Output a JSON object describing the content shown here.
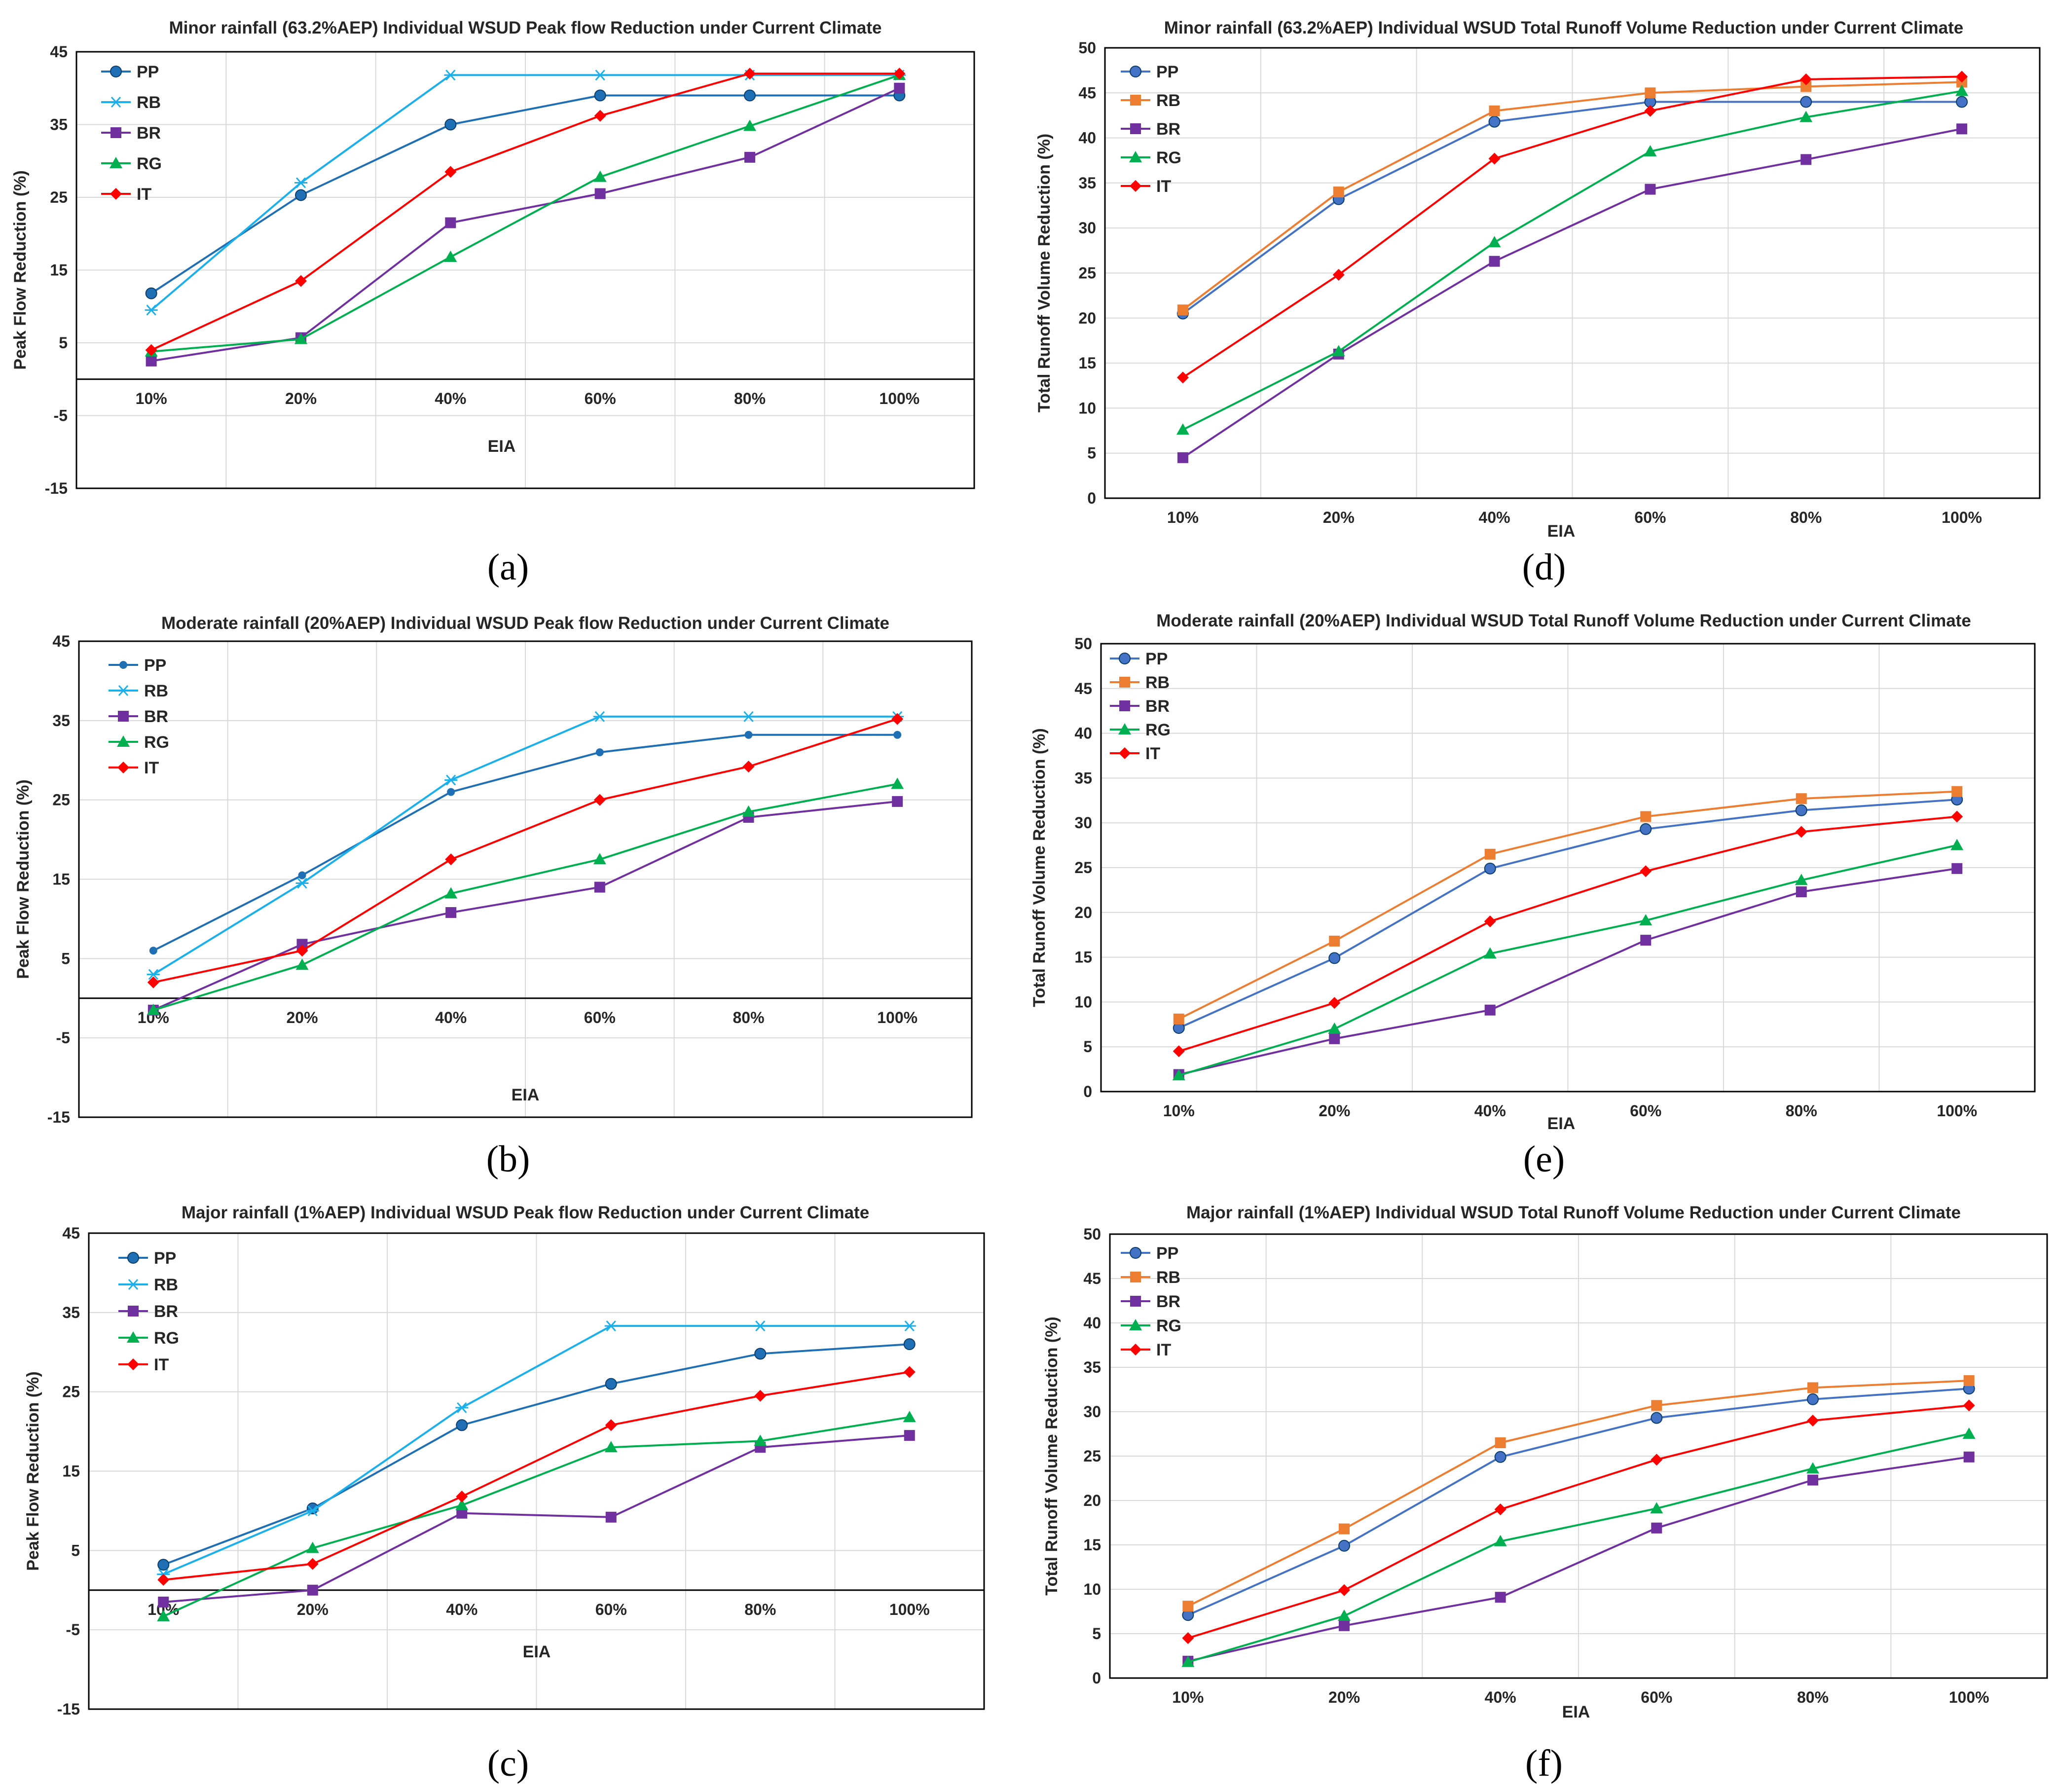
{
  "colors": {
    "PP": "#1f6fb5",
    "RB": "#1ab0ec",
    "BR": "#7030a0",
    "RG": "#00b050",
    "IT": "#ff0000",
    "PP_volume": "#4472c4",
    "RB_volume": "#ed7d31"
  },
  "chart_data": [
    {
      "id": "a",
      "panel_label": "(a)",
      "type": "line",
      "title": "Minor rainfall (63.2%AEP)  Individual WSUD Peak flow Reduction under Current Climate",
      "xlabel": "EIA",
      "ylabel": "Peak Flow Reduction (%)",
      "categories": [
        "10%",
        "20%",
        "40%",
        "60%",
        "80%",
        "100%"
      ],
      "ylim": [
        -15,
        45
      ],
      "yticks": [
        "-15",
        "-5",
        "5",
        "15",
        "25",
        "35",
        "45"
      ],
      "grid": true,
      "legend_position": "top-left",
      "series": [
        {
          "name": "PP",
          "marker": "circle",
          "color": "#1f6fb5",
          "values": [
            11.8,
            25.3,
            35.0,
            39.0,
            39.0,
            39.0
          ]
        },
        {
          "name": "RB",
          "marker": "star",
          "color": "#1ab0ec",
          "values": [
            9.5,
            27.0,
            41.8,
            41.8,
            41.8,
            41.8
          ]
        },
        {
          "name": "BR",
          "marker": "square",
          "color": "#7030a0",
          "values": [
            2.5,
            5.7,
            21.5,
            25.5,
            30.5,
            40.0
          ]
        },
        {
          "name": "RG",
          "marker": "triangle",
          "color": "#00b050",
          "values": [
            3.8,
            5.5,
            16.8,
            27.8,
            34.8,
            41.8
          ]
        },
        {
          "name": "IT",
          "marker": "diamond",
          "color": "#ff0000",
          "values": [
            4.0,
            13.5,
            28.5,
            36.2,
            42.0,
            42.0
          ]
        }
      ]
    },
    {
      "id": "b",
      "panel_label": "(b)",
      "type": "line",
      "title": "Moderate rainfall (20%AEP)  Individual WSUD Peak flow Reduction under Current Climate",
      "xlabel": "EIA",
      "ylabel": "Peak Flow Reduction (%)",
      "categories": [
        "10%",
        "20%",
        "40%",
        "60%",
        "80%",
        "100%"
      ],
      "ylim": [
        -15,
        45
      ],
      "yticks": [
        "-15",
        "-5",
        "5",
        "15",
        "25",
        "35",
        "45"
      ],
      "grid": true,
      "legend_position": "top-left",
      "series": [
        {
          "name": "PP",
          "marker": "circle-small",
          "color": "#1f6fb5",
          "values": [
            6.0,
            15.5,
            26.0,
            31.0,
            33.2,
            33.2
          ]
        },
        {
          "name": "RB",
          "marker": "star",
          "color": "#1ab0ec",
          "values": [
            3.0,
            14.5,
            27.5,
            35.5,
            35.5,
            35.5
          ]
        },
        {
          "name": "BR",
          "marker": "square",
          "color": "#7030a0",
          "values": [
            -1.5,
            6.8,
            10.8,
            14.0,
            22.8,
            24.8
          ]
        },
        {
          "name": "RG",
          "marker": "triangle",
          "color": "#00b050",
          "values": [
            -1.5,
            4.2,
            13.2,
            17.5,
            23.5,
            27.0
          ]
        },
        {
          "name": "IT",
          "marker": "diamond",
          "color": "#ff0000",
          "values": [
            2.0,
            6.0,
            17.5,
            25.0,
            29.2,
            35.2
          ]
        }
      ]
    },
    {
      "id": "c",
      "panel_label": "(c)",
      "type": "line",
      "title": "Major rainfall (1%AEP)  Individual WSUD Peak flow Reduction under Current Climate",
      "xlabel": "EIA",
      "ylabel": "Peak Flow Reduction (%)",
      "categories": [
        "10%",
        "20%",
        "40%",
        "60%",
        "80%",
        "100%"
      ],
      "ylim": [
        -15,
        45
      ],
      "yticks": [
        "-15",
        "-5",
        "5",
        "15",
        "25",
        "35",
        "45"
      ],
      "grid": true,
      "legend_position": "top-left",
      "series": [
        {
          "name": "PP",
          "marker": "circle",
          "color": "#1f6fb5",
          "values": [
            3.2,
            10.3,
            20.8,
            26.0,
            29.8,
            31.0
          ]
        },
        {
          "name": "RB",
          "marker": "star",
          "color": "#1ab0ec",
          "values": [
            2.0,
            10.0,
            23.0,
            33.3,
            33.3,
            33.3
          ]
        },
        {
          "name": "BR",
          "marker": "square",
          "color": "#7030a0",
          "values": [
            -1.5,
            0.0,
            9.7,
            9.2,
            18.0,
            19.5
          ]
        },
        {
          "name": "RG",
          "marker": "triangle",
          "color": "#00b050",
          "values": [
            -3.3,
            5.3,
            10.7,
            18.0,
            18.8,
            21.8
          ]
        },
        {
          "name": "IT",
          "marker": "diamond",
          "color": "#ff0000",
          "values": [
            1.3,
            3.3,
            11.8,
            20.8,
            24.5,
            27.5
          ]
        }
      ]
    },
    {
      "id": "d",
      "panel_label": "(d)",
      "type": "line",
      "title": "Minor rainfall (63.2%AEP)  Individual WSUD Total Runoff Volume Reduction under Current Climate",
      "xlabel": "EIA",
      "ylabel": "Total Runoff Volume Reduction (%)",
      "categories": [
        "10%",
        "20%",
        "40%",
        "60%",
        "80%",
        "100%"
      ],
      "ylim": [
        0,
        50
      ],
      "yticks": [
        "0",
        "5",
        "10",
        "15",
        "20",
        "25",
        "30",
        "35",
        "40",
        "45",
        "50"
      ],
      "grid": true,
      "legend_position": "top-left",
      "series": [
        {
          "name": "PP",
          "marker": "circle",
          "color": "#4472c4",
          "values": [
            20.5,
            33.2,
            41.8,
            44.0,
            44.0,
            44.0
          ]
        },
        {
          "name": "RB",
          "marker": "square",
          "color": "#ed7d31",
          "values": [
            20.9,
            34.0,
            43.0,
            45.0,
            45.7,
            46.2
          ]
        },
        {
          "name": "BR",
          "marker": "square",
          "color": "#7030a0",
          "values": [
            4.5,
            16.0,
            26.3,
            34.3,
            37.6,
            41.0
          ]
        },
        {
          "name": "RG",
          "marker": "triangle",
          "color": "#00b050",
          "values": [
            7.6,
            16.3,
            28.4,
            38.5,
            42.3,
            45.2
          ]
        },
        {
          "name": "IT",
          "marker": "diamond",
          "color": "#ff0000",
          "values": [
            13.4,
            24.8,
            37.7,
            43.0,
            46.5,
            46.8
          ]
        }
      ]
    },
    {
      "id": "e",
      "panel_label": "(e)",
      "type": "line",
      "title": "Moderate rainfall (20%AEP)  Individual WSUD Total Runoff Volume Reduction under Current Climate",
      "xlabel": "EIA",
      "ylabel": "Total Runoff Volume Reduction (%)",
      "categories": [
        "10%",
        "20%",
        "40%",
        "60%",
        "80%",
        "100%"
      ],
      "ylim": [
        0,
        50
      ],
      "yticks": [
        "0",
        "5",
        "10",
        "15",
        "20",
        "25",
        "30",
        "35",
        "40",
        "45",
        "50"
      ],
      "grid": true,
      "legend_position": "top-left",
      "series": [
        {
          "name": "PP",
          "marker": "circle",
          "color": "#4472c4",
          "values": [
            7.1,
            14.9,
            24.9,
            29.3,
            31.4,
            32.6
          ]
        },
        {
          "name": "RB",
          "marker": "square",
          "color": "#ed7d31",
          "values": [
            8.1,
            16.8,
            26.5,
            30.7,
            32.7,
            33.5
          ]
        },
        {
          "name": "BR",
          "marker": "square",
          "color": "#7030a0",
          "values": [
            1.9,
            5.9,
            9.1,
            16.9,
            22.3,
            24.9
          ]
        },
        {
          "name": "RG",
          "marker": "triangle",
          "color": "#00b050",
          "values": [
            1.8,
            7.0,
            15.4,
            19.1,
            23.6,
            27.5
          ]
        },
        {
          "name": "IT",
          "marker": "diamond",
          "color": "#ff0000",
          "values": [
            4.5,
            9.9,
            19.0,
            24.6,
            29.0,
            30.7
          ]
        }
      ]
    },
    {
      "id": "f",
      "panel_label": "(f)",
      "type": "line",
      "title": "Major rainfall (1%AEP)  Individual WSUD Total Runoff Volume Reduction under Current Climate",
      "xlabel": "EIA",
      "ylabel": "Total Runoff Volume Reduction (%)",
      "categories": [
        "10%",
        "20%",
        "40%",
        "60%",
        "80%",
        "100%"
      ],
      "ylim": [
        0,
        50
      ],
      "yticks": [
        "0",
        "5",
        "10",
        "15",
        "20",
        "25",
        "30",
        "35",
        "40",
        "45",
        "50"
      ],
      "grid": true,
      "legend_position": "top-left",
      "series": [
        {
          "name": "PP",
          "marker": "circle",
          "color": "#4472c4",
          "values": [
            7.1,
            14.9,
            24.9,
            29.3,
            31.4,
            32.6
          ]
        },
        {
          "name": "RB",
          "marker": "square",
          "color": "#ed7d31",
          "values": [
            8.1,
            16.8,
            26.5,
            30.7,
            32.7,
            33.5
          ]
        },
        {
          "name": "BR",
          "marker": "square",
          "color": "#7030a0",
          "values": [
            1.9,
            5.9,
            9.1,
            16.9,
            22.3,
            24.9
          ]
        },
        {
          "name": "RG",
          "marker": "triangle",
          "color": "#00b050",
          "values": [
            1.8,
            7.0,
            15.4,
            19.1,
            23.6,
            27.5
          ]
        },
        {
          "name": "IT",
          "marker": "diamond",
          "color": "#ff0000",
          "values": [
            4.5,
            9.9,
            19.0,
            24.6,
            29.0,
            30.7
          ]
        }
      ]
    }
  ]
}
